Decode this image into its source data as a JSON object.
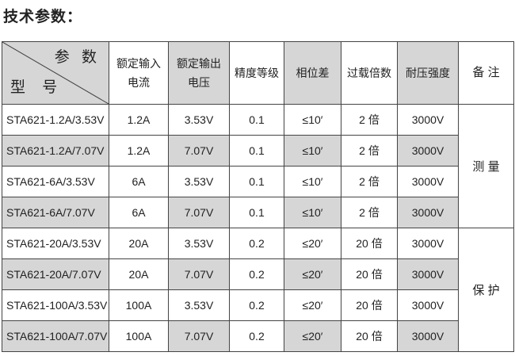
{
  "title": "技术参数：",
  "header": {
    "param": "参 数",
    "model": "型 号",
    "cols": [
      "额定输入\n电流",
      "额定输出\n电压",
      "精度等级",
      "相位差",
      "过载倍数",
      "耐压强度",
      "备 注"
    ],
    "col_lines": [
      [
        "额定输入",
        "电流"
      ],
      [
        "额定输出",
        "电压"
      ]
    ]
  },
  "rows": [
    [
      "STA621-1.2A/3.53V",
      "1.2A",
      "3.53V",
      "0.1",
      "≤10′",
      "2 倍",
      "3000V"
    ],
    [
      "STA621-1.2A/7.07V",
      "1.2A",
      "7.07V",
      "0.1",
      "≤10′",
      "2 倍",
      "3000V"
    ],
    [
      "STA621-6A/3.53V",
      "6A",
      "3.53V",
      "0.1",
      "≤10′",
      "2 倍",
      "3000V"
    ],
    [
      "STA621-6A/7.07V",
      "6A",
      "7.07V",
      "0.1",
      "≤10′",
      "2 倍",
      "3000V"
    ],
    [
      "STA621-20A/3.53V",
      "20A",
      "3.53V",
      "0.2",
      "≤20′",
      "20 倍",
      "3000V"
    ],
    [
      "STA621-20A/7.07V",
      "20A",
      "7.07V",
      "0.2",
      "≤20′",
      "20 倍",
      "3000V"
    ],
    [
      "STA621-100A/3.53V",
      "100A",
      "3.53V",
      "0.2",
      "≤20′",
      "20 倍",
      "3000V"
    ],
    [
      "STA621-100A/7.07V",
      "100A",
      "7.07V",
      "0.2",
      "≤20′",
      "20 倍",
      "3000V"
    ]
  ],
  "remarks": [
    "测 量",
    "保 护"
  ],
  "shade_color": "#d6d6d6"
}
